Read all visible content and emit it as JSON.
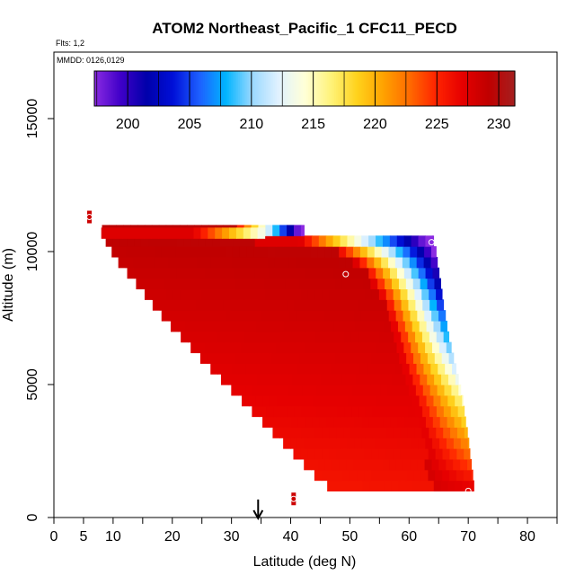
{
  "chart_data": {
    "type": "heatmap",
    "title": "ATOM2 Northeast_Pacific_1 CFC11_PECD",
    "flights_note": "Flts: 1,2",
    "date_note": "MMDD: 0126,0129",
    "xlabel": "Latitude (deg N)",
    "ylabel": "Altitude (m)",
    "xlim": [
      0,
      85
    ],
    "ylim": [
      0,
      17500
    ],
    "x_ticks_major": [
      0,
      5,
      10,
      20,
      30,
      40,
      50,
      60,
      70,
      80
    ],
    "x_ticks_minor": [
      15,
      25,
      35,
      45,
      55,
      65,
      75,
      85
    ],
    "y_ticks": [
      0,
      5000,
      10000,
      15000
    ],
    "arrow_latitude": 34.5,
    "colorbar": {
      "min": 197.3,
      "max": 231.3,
      "ticks": [
        200,
        205,
        210,
        215,
        220,
        225,
        230
      ],
      "colors": [
        "#8B2BE2",
        "#3F00C8",
        "#0000AA",
        "#0010D8",
        "#1E60FF",
        "#00B4FF",
        "#9AD8FF",
        "#E0F2FF",
        "#FFFFD8",
        "#FFF37A",
        "#FFD21C",
        "#FFA200",
        "#FF6A00",
        "#FF2400",
        "#E60000",
        "#C00000",
        "#A51F1F"
      ]
    },
    "curtain": {
      "bottom_altitude": 1000,
      "left_edge": [
        [
          8,
          10900
        ],
        [
          8.5,
          10500
        ],
        [
          9.5,
          10100
        ],
        [
          10.5,
          9700
        ],
        [
          12,
          9300
        ],
        [
          13.5,
          8900
        ],
        [
          15,
          8500
        ],
        [
          16.3,
          8100
        ],
        [
          17.8,
          7700
        ],
        [
          19.3,
          7300
        ],
        [
          21,
          6900
        ],
        [
          22.7,
          6500
        ],
        [
          24.3,
          6100
        ],
        [
          26,
          5700
        ],
        [
          27.8,
          5300
        ],
        [
          29.5,
          4900
        ],
        [
          31.3,
          4500
        ],
        [
          33,
          4100
        ],
        [
          34.8,
          3700
        ],
        [
          36.5,
          3300
        ],
        [
          38.3,
          2900
        ],
        [
          40,
          2500
        ],
        [
          41.8,
          2100
        ],
        [
          43.5,
          1700
        ],
        [
          45.5,
          1300
        ],
        [
          47.5,
          1000
        ]
      ],
      "right_edge": [
        [
          35,
          10900
        ],
        [
          64,
          10500
        ],
        [
          64.5,
          10100
        ],
        [
          64.8,
          9500
        ],
        [
          65.2,
          9000
        ],
        [
          65.5,
          8500
        ],
        [
          65.8,
          8000
        ],
        [
          66.2,
          7500
        ],
        [
          66.5,
          7000
        ],
        [
          67,
          6500
        ],
        [
          67.5,
          6000
        ],
        [
          68,
          5500
        ],
        [
          68.5,
          5000
        ],
        [
          69,
          4500
        ],
        [
          69.3,
          4000
        ],
        [
          69.6,
          3500
        ],
        [
          70,
          3000
        ],
        [
          70.2,
          2500
        ],
        [
          70.5,
          2000
        ],
        [
          70.8,
          1500
        ],
        [
          71,
          1000
        ]
      ],
      "gradient_band": [
        [
          35,
          10850
        ],
        [
          50,
          10300
        ],
        [
          55,
          9900
        ],
        [
          58,
          9400
        ],
        [
          59.5,
          8900
        ],
        [
          61,
          8400
        ],
        [
          62,
          7900
        ],
        [
          62.8,
          7400
        ],
        [
          63.5,
          6900
        ],
        [
          64,
          6400
        ],
        [
          64.5,
          5900
        ],
        [
          65.2,
          5400
        ],
        [
          65.8,
          4900
        ],
        [
          66.5,
          4400
        ],
        [
          67,
          3900
        ],
        [
          67.6,
          3400
        ],
        [
          68.2,
          2900
        ],
        [
          68.8,
          2400
        ],
        [
          69.3,
          1900
        ],
        [
          69.8,
          1400
        ]
      ],
      "upper_leg_top": 10900,
      "upper_leg_right_lat": 35
    },
    "markers": [
      {
        "lat": 6,
        "alt": 11300
      },
      {
        "lat": 63.8,
        "alt": 10350
      },
      {
        "lat": 49.3,
        "alt": 9150
      },
      {
        "lat": 40.5,
        "alt": 700
      },
      {
        "lat": 70,
        "alt": 1000
      }
    ]
  }
}
